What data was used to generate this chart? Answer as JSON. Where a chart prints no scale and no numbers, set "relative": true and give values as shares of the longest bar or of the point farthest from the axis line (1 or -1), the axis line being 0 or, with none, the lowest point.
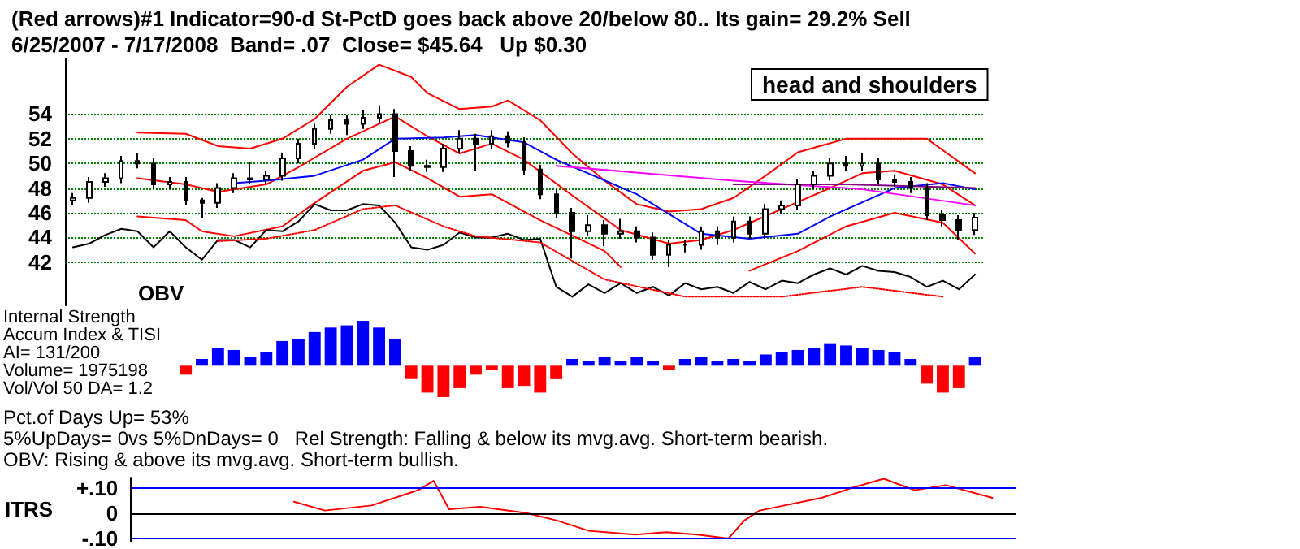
{
  "chart_data": [
    {
      "type": "candlestick",
      "title": "(Red arrows)#1 Indicator=90-d St-PctD goes back above 20/below 80.. Its gain= 29.2% Sell",
      "subtitle": "6/25/2007 - 7/17/2008  Band= .07  Close= $45.64   Up $0.30",
      "annotations": [
        "OBV",
        "head and shoulders"
      ],
      "color": "#000000",
      "categories": [
        null,
        null,
        null,
        null,
        null,
        null,
        null,
        null,
        null,
        null,
        null,
        null,
        null,
        null,
        null,
        null,
        null,
        null,
        null,
        null,
        null,
        null,
        null,
        null,
        null,
        null,
        null,
        null,
        null,
        null,
        null,
        null,
        null,
        null,
        null,
        null,
        null,
        null,
        null,
        null,
        null,
        null,
        null,
        null,
        null,
        null,
        null,
        null,
        null,
        null,
        null,
        null,
        null,
        null,
        null,
        null,
        null
      ],
      "ohlc": [
        [
          47,
          47.6,
          46.6,
          47.2
        ],
        [
          47.2,
          48.9,
          46.8,
          48.5
        ],
        [
          48.5,
          49.2,
          48.1,
          48.8
        ],
        [
          48.8,
          50.6,
          48.4,
          50.2
        ],
        [
          50.2,
          50.8,
          49.6,
          50
        ],
        [
          50,
          50.4,
          47.9,
          48.3
        ],
        [
          48.3,
          48.9,
          47.9,
          48.5
        ],
        [
          48.5,
          48.9,
          46.6,
          47
        ],
        [
          47,
          47.2,
          45.6,
          46.8
        ],
        [
          46.8,
          48.4,
          46.4,
          48
        ],
        [
          48,
          49.2,
          47.6,
          48.8
        ],
        [
          48.8,
          50.1,
          48.3,
          48.7
        ],
        [
          48.7,
          49.4,
          48.3,
          49
        ],
        [
          49,
          50.8,
          48.6,
          50.4
        ],
        [
          50.4,
          52,
          50,
          51.6
        ],
        [
          51.6,
          53.2,
          51.2,
          52.8
        ],
        [
          52.8,
          53.9,
          52.4,
          53.5
        ],
        [
          53.5,
          53.9,
          52.3,
          53.2
        ],
        [
          53.2,
          54.3,
          52.8,
          53.7
        ],
        [
          53.7,
          54.7,
          53.3,
          54
        ],
        [
          54,
          54.4,
          48.9,
          51
        ],
        [
          51,
          51.4,
          49.4,
          49.8
        ],
        [
          49.8,
          50.3,
          49.3,
          49.7
        ],
        [
          49.7,
          51.6,
          49.3,
          51.2
        ],
        [
          51.2,
          52.7,
          50.8,
          52
        ],
        [
          52,
          52.4,
          49.4,
          51.6
        ],
        [
          51.6,
          52.7,
          51.2,
          52.2
        ],
        [
          52.2,
          52.6,
          51.3,
          51.7
        ],
        [
          51.7,
          52.1,
          49.1,
          49.5
        ],
        [
          49.5,
          49.9,
          47.1,
          47.5
        ],
        [
          47.5,
          47.9,
          45.6,
          46
        ],
        [
          46,
          46.4,
          42.3,
          44.5
        ],
        [
          44.5,
          45.8,
          44.1,
          45
        ],
        [
          45,
          45.4,
          43.3,
          44.3
        ],
        [
          44.3,
          45.5,
          43.9,
          44.5
        ],
        [
          44.5,
          44.9,
          43.6,
          44
        ],
        [
          44,
          44.4,
          42.2,
          42.6
        ],
        [
          42.6,
          43.8,
          41.6,
          43.4
        ],
        [
          43.4,
          43.8,
          42.8,
          43.4
        ],
        [
          43.4,
          44.9,
          43,
          44.5
        ],
        [
          44.5,
          44.9,
          43.4,
          44
        ],
        [
          44,
          45.7,
          43.6,
          45.3
        ],
        [
          45.3,
          45.7,
          43.9,
          44.3
        ],
        [
          44.3,
          46.7,
          43.9,
          46.3
        ],
        [
          46.3,
          47,
          45.9,
          46.6
        ],
        [
          46.6,
          48.7,
          46.2,
          48.3
        ],
        [
          48.3,
          49.4,
          47.9,
          49
        ],
        [
          49,
          50.4,
          48.6,
          50
        ],
        [
          50,
          50.6,
          49.4,
          49.8
        ],
        [
          49.8,
          50.8,
          49.4,
          50
        ],
        [
          50,
          50.4,
          48.3,
          48.7
        ],
        [
          48.7,
          49.1,
          48.1,
          48.5
        ],
        [
          48.5,
          48.9,
          47.6,
          48
        ],
        [
          48,
          48.4,
          45.4,
          45.8
        ],
        [
          45.8,
          46.2,
          44.9,
          45.4
        ],
        [
          45.4,
          45.8,
          43.8,
          44.6
        ],
        [
          44.6,
          46,
          44.2,
          45.6
        ]
      ],
      "series": [
        {
          "type": "line",
          "color": "#ff0000",
          "values": [
            null,
            null,
            null,
            null,
            52.5,
            null,
            null,
            52.4,
            null,
            51.4,
            null,
            51.2,
            null,
            52,
            null,
            53.6,
            null,
            56.2,
            null,
            58,
            null,
            57,
            55.7,
            null,
            54.4,
            null,
            54.6,
            55.1,
            null,
            53.5,
            null,
            50.8,
            null,
            48.6,
            null,
            46.7,
            null,
            46.1,
            null,
            46.3,
            null,
            47.2,
            null,
            49,
            null,
            50.9,
            null,
            null,
            52,
            null,
            null,
            null,
            null,
            52,
            null,
            null,
            49.2
          ]
        },
        {
          "type": "line",
          "color": "#ff0000",
          "values": [
            null,
            null,
            null,
            null,
            48.8,
            null,
            null,
            48.3,
            null,
            47.7,
            null,
            null,
            48.3,
            null,
            49.7,
            null,
            null,
            52,
            null,
            null,
            53.8,
            null,
            52.2,
            null,
            50.8,
            null,
            51.6,
            null,
            50.3,
            null,
            null,
            47.4,
            null,
            null,
            44.6,
            null,
            null,
            43.5,
            null,
            43.8,
            null,
            44.6,
            null,
            null,
            46.3,
            null,
            null,
            48,
            null,
            49.2,
            null,
            49.4,
            null,
            null,
            48.3,
            null,
            46.6
          ]
        },
        {
          "type": "line",
          "color": "#ff0000",
          "values": [
            null,
            null,
            null,
            null,
            45.7,
            null,
            null,
            45.4,
            44.5,
            null,
            44.1,
            null,
            null,
            44.9,
            null,
            46.8,
            null,
            null,
            49.4,
            null,
            50.1,
            null,
            48.8,
            null,
            47.3,
            null,
            47.5,
            null,
            null,
            45.4,
            null,
            null,
            null,
            42.9,
            41.6,
            null,
            null,
            null,
            null,
            null,
            null,
            null,
            null,
            null,
            null,
            null,
            null,
            null,
            null,
            null,
            null,
            null,
            null,
            null,
            null,
            null,
            null
          ]
        },
        {
          "type": "line",
          "color": "#ff0000",
          "values": [
            null,
            null,
            null,
            null,
            null,
            null,
            null,
            null,
            null,
            null,
            null,
            null,
            null,
            null,
            null,
            null,
            null,
            null,
            null,
            null,
            null,
            null,
            null,
            null,
            null,
            null,
            null,
            null,
            null,
            null,
            null,
            null,
            null,
            null,
            null,
            null,
            null,
            null,
            null,
            null,
            null,
            null,
            41.3,
            null,
            null,
            42.9,
            null,
            null,
            44.9,
            null,
            null,
            46,
            null,
            null,
            45.2,
            null,
            42.7
          ]
        },
        {
          "type": "line",
          "color": "#0000ff",
          "values": [
            null,
            null,
            null,
            null,
            null,
            null,
            null,
            null,
            null,
            null,
            48.4,
            null,
            48.6,
            null,
            null,
            49,
            null,
            null,
            50.3,
            null,
            52,
            null,
            null,
            52.1,
            null,
            52.3,
            null,
            null,
            51.7,
            null,
            50.3,
            null,
            null,
            null,
            null,
            47.5,
            null,
            null,
            null,
            44.3,
            null,
            null,
            43.9,
            null,
            null,
            44.3,
            null,
            45.7,
            null,
            null,
            null,
            48,
            null,
            null,
            48.4,
            null,
            47.9
          ]
        },
        {
          "type": "line",
          "color": "#ff00ff",
          "values": [
            null,
            null,
            null,
            null,
            null,
            null,
            null,
            null,
            null,
            null,
            null,
            null,
            null,
            null,
            null,
            null,
            null,
            null,
            null,
            null,
            null,
            null,
            null,
            null,
            null,
            null,
            null,
            null,
            null,
            null,
            49.8,
            null,
            null,
            null,
            null,
            null,
            null,
            null,
            null,
            null,
            null,
            48.6,
            null,
            null,
            null,
            null,
            null,
            null,
            null,
            47.9,
            null,
            null,
            null,
            null,
            null,
            null,
            46.6
          ]
        },
        {
          "type": "line",
          "color": "#800080",
          "values": [
            null,
            null,
            null,
            null,
            null,
            null,
            null,
            null,
            null,
            null,
            null,
            null,
            null,
            null,
            null,
            null,
            null,
            null,
            null,
            null,
            null,
            null,
            null,
            null,
            null,
            null,
            null,
            null,
            null,
            null,
            null,
            null,
            null,
            null,
            null,
            null,
            null,
            null,
            null,
            null,
            null,
            48.3,
            null,
            null,
            null,
            null,
            null,
            null,
            48.3,
            null,
            null,
            null,
            null,
            null,
            null,
            null,
            48
          ]
        },
        {
          "type": "line",
          "color": "#000000",
          "values": [
            43.2,
            43.5,
            44.2,
            44.7,
            44.5,
            43.2,
            44.5,
            43.2,
            42.2,
            43.8,
            43.8,
            43.2,
            44.6,
            44.5,
            45.3,
            46.7,
            46.2,
            46.2,
            46.7,
            46.6,
            45.2,
            43.2,
            43,
            43.4,
            44.4,
            44,
            44,
            44.3,
            43.8,
            43.9,
            40,
            39.2,
            40.2,
            39.5,
            40.3,
            39.5,
            40,
            39.3,
            40.3,
            39.8,
            40,
            39.5,
            40.4,
            39.8,
            40.5,
            40.3,
            41,
            41.5,
            41,
            41.7,
            41.3,
            41.2,
            40.8,
            40,
            40.5,
            39.8,
            41
          ]
        },
        {
          "type": "line",
          "color": "#ff0000",
          "line_style": "dotted",
          "values": [
            null,
            null,
            null,
            null,
            null,
            null,
            null,
            null,
            null,
            43.7,
            null,
            null,
            43.9,
            null,
            null,
            44.6,
            null,
            null,
            46.3,
            null,
            46.6,
            null,
            null,
            44.9,
            null,
            44.1,
            null,
            null,
            null,
            43.6,
            null,
            null,
            null,
            40.6,
            null,
            null,
            null,
            null,
            39.2,
            null,
            null,
            null,
            null,
            null,
            39.2,
            null,
            null,
            null,
            null,
            40,
            null,
            null,
            null,
            null,
            39.2,
            null,
            null
          ]
        }
      ],
      "ylim": [
        38.5,
        58.5
      ],
      "yticks": [
        42,
        44,
        46,
        48,
        50,
        52,
        54
      ],
      "grid": "y",
      "tick_labels": "y",
      "marker": "none"
    },
    {
      "type": "bar",
      "relative": true,
      "annotations": [
        "Internal Strength",
        "Accum Index & TISI",
        "AI= 131/200",
        "Volume= 1975198",
        "Vol/Vol 50 DA= 1.2",
        "Pct.of Days Up= 53%",
        "5%UpDays= 0vs 5%DnDays= 0   Rel Strength: Falling & below its mvg.avg. Short-term bearish.",
        "OBV: Rising & above its mvg.avg. Short-term bullish."
      ],
      "categories": [
        null,
        null,
        null,
        null,
        null,
        null,
        null,
        null,
        null,
        null,
        null,
        null,
        null,
        null,
        null,
        null,
        null,
        null,
        null,
        null,
        null,
        null,
        null,
        null,
        null,
        null,
        null,
        null,
        null,
        null,
        null,
        null,
        null,
        null,
        null,
        null,
        null,
        null,
        null,
        null,
        null,
        null,
        null,
        null,
        null,
        null,
        null,
        null,
        null,
        null,
        null,
        null,
        null,
        null,
        null,
        null,
        null
      ],
      "values": [
        null,
        null,
        null,
        null,
        null,
        null,
        null,
        -0.2,
        0.15,
        0.4,
        0.35,
        0.2,
        0.3,
        0.55,
        0.6,
        0.75,
        0.85,
        0.9,
        1,
        0.85,
        0.6,
        -0.3,
        -0.6,
        -0.7,
        -0.5,
        -0.2,
        -0.1,
        -0.5,
        -0.45,
        -0.6,
        -0.3,
        0.15,
        0.1,
        0.2,
        0.1,
        0.2,
        0.1,
        -0.1,
        0.15,
        0.2,
        0.1,
        0.15,
        0.1,
        0.25,
        0.3,
        0.35,
        0.4,
        0.5,
        0.45,
        0.4,
        0.35,
        0.3,
        0.15,
        -0.4,
        -0.6,
        -0.5,
        0.2
      ],
      "colors": [
        null,
        null,
        null,
        null,
        null,
        null,
        null,
        "#ff0000",
        "#0000ff",
        "#0000ff",
        "#0000ff",
        "#0000ff",
        "#0000ff",
        "#0000ff",
        "#0000ff",
        "#0000ff",
        "#0000ff",
        "#0000ff",
        "#0000ff",
        "#0000ff",
        "#0000ff",
        "#ff0000",
        "#ff0000",
        "#ff0000",
        "#ff0000",
        "#ff0000",
        "#ff0000",
        "#ff0000",
        "#ff0000",
        "#ff0000",
        "#ff0000",
        "#0000ff",
        "#0000ff",
        "#0000ff",
        "#0000ff",
        "#0000ff",
        "#0000ff",
        "#ff0000",
        "#0000ff",
        "#0000ff",
        "#0000ff",
        "#0000ff",
        "#0000ff",
        "#0000ff",
        "#0000ff",
        "#0000ff",
        "#0000ff",
        "#0000ff",
        "#0000ff",
        "#0000ff",
        "#0000ff",
        "#0000ff",
        "#0000ff",
        "#ff0000",
        "#ff0000",
        "#ff0000",
        "#0000ff"
      ],
      "tick_labels": false
    },
    {
      "type": "line",
      "ylabel": "ITRS",
      "categories": [
        null,
        null,
        null,
        null,
        null,
        null,
        null,
        null,
        null,
        null,
        null,
        null,
        null,
        null,
        null,
        null,
        null,
        null,
        null,
        null,
        null,
        null,
        null,
        null,
        null,
        null,
        null,
        null,
        null,
        null,
        null,
        null,
        null,
        null,
        null,
        null,
        null,
        null,
        null,
        null,
        null,
        null,
        null,
        null,
        null,
        null,
        null,
        null,
        null,
        null,
        null,
        null,
        null,
        null,
        null,
        null,
        null
      ],
      "series": [
        {
          "color": "#ff0000",
          "values": [
            null,
            null,
            null,
            null,
            null,
            null,
            null,
            null,
            null,
            null,
            0.045,
            null,
            0.01,
            null,
            null,
            0.03,
            null,
            null,
            0.09,
            0.127,
            0.015,
            null,
            0.025,
            null,
            null,
            0,
            null,
            -0.03,
            null,
            -0.07,
            null,
            null,
            -0.085,
            null,
            -0.075,
            null,
            -0.085,
            null,
            -0.1,
            -0.03,
            0.01,
            null,
            null,
            null,
            0.06,
            null,
            0.1,
            null,
            0.135,
            null,
            0.09,
            null,
            0.11,
            null,
            null,
            0.06,
            null
          ]
        }
      ],
      "ylim": [
        -0.11,
        0.14
      ],
      "yticks": [
        {
          "value": 0.1,
          "label": "+.10"
        },
        0,
        {
          "value": -0.1,
          "label": "-.10"
        }
      ],
      "ref_lines": [
        {
          "axis": "y",
          "value": 0.1,
          "color": "#0000ff"
        },
        {
          "axis": "y",
          "value": 0,
          "color": "#000000"
        },
        {
          "axis": "y",
          "value": -0.1,
          "color": "#0000ff"
        }
      ],
      "tick_labels": "y",
      "marker": "none"
    }
  ]
}
